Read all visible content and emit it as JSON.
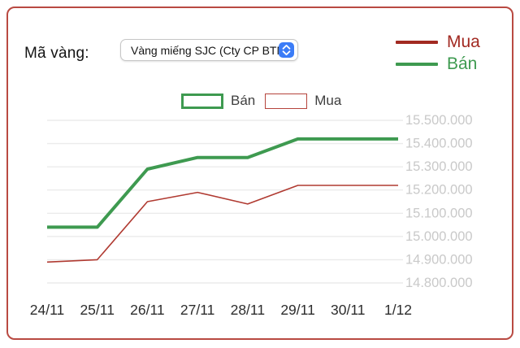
{
  "header": {
    "label": "Mã vàng:",
    "select": {
      "value": "Vàng miếng SJC (Cty CP BTM"
    }
  },
  "price_legend": [
    {
      "key": "mua",
      "label": "Mua"
    },
    {
      "key": "ban",
      "label": "Bán"
    }
  ],
  "chart_legend": [
    {
      "key": "ban",
      "label": "Bán",
      "color": "#3e9a50"
    },
    {
      "key": "mua",
      "label": "Mua",
      "color": "#b5443c"
    }
  ],
  "chart_data": {
    "type": "line",
    "categories": [
      "24/11",
      "25/11",
      "26/11",
      "27/11",
      "28/11",
      "29/11",
      "30/11",
      "1/12"
    ],
    "series": [
      {
        "key": "ban",
        "name": "Bán",
        "color": "#3e9a50",
        "stroke_width": 4,
        "values": [
          15040000,
          15040000,
          15290000,
          15340000,
          15340000,
          15420000,
          15420000,
          15420000
        ]
      },
      {
        "key": "mua",
        "name": "Mua",
        "color": "#b03a31",
        "stroke_width": 1.6,
        "values": [
          14890000,
          14900000,
          15150000,
          15190000,
          15140000,
          15220000,
          15220000,
          15220000
        ]
      }
    ],
    "ylim": [
      14800000,
      15500000
    ],
    "ytick_values": [
      15500000,
      15400000,
      15300000,
      15200000,
      15100000,
      15000000,
      14900000,
      14800000
    ],
    "ytick_labels": [
      "15.500.000",
      "15.400.000",
      "15.300.000",
      "15.200.000",
      "15.100.000",
      "15.000.000",
      "14.900.000",
      "14.800.000"
    ],
    "grid": "horizontal",
    "legend_position": "top-center",
    "yaxis_side": "right"
  },
  "colors": {
    "card_border": "#b94a42",
    "mua": "#a22a22",
    "ban": "#3e9a50",
    "grid": "#ebebeb",
    "y_label": "#c9c9c9",
    "x_label": "#2d2d2d",
    "select_blue": "#3b7cf7"
  }
}
